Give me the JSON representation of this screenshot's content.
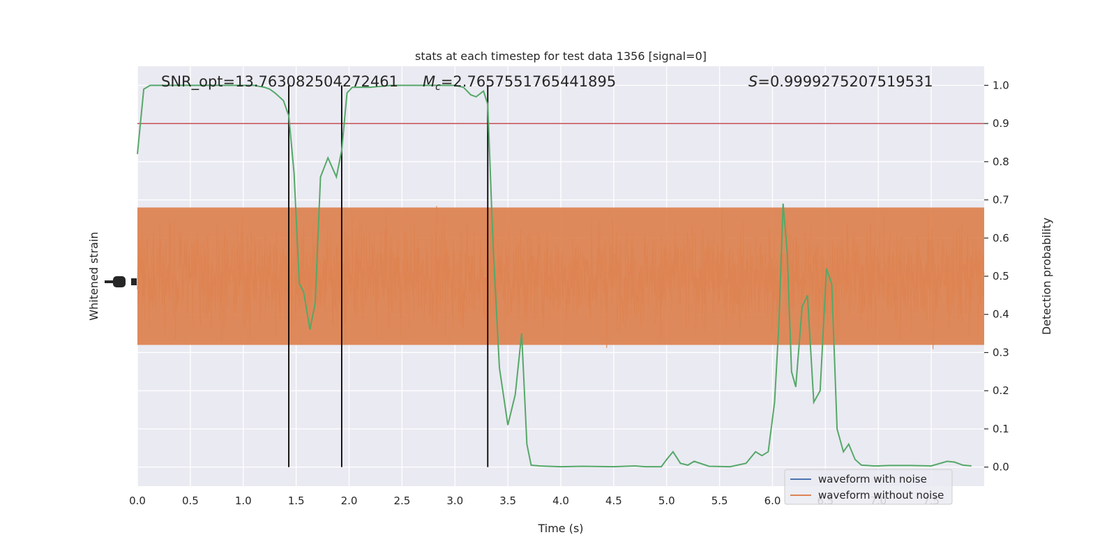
{
  "chart_data": {
    "type": "line",
    "title": "stats at each timestep for test data 1356 [signal=0]",
    "xlabel": "Time (s)",
    "ylabel_left": "Whitened strain",
    "ylabel_right": "Detection probability",
    "xlim": [
      0.0,
      8.0
    ],
    "ylim_right": [
      -0.05,
      1.05
    ],
    "x_ticks": [
      "0.0",
      "0.5",
      "1.0",
      "1.5",
      "2.0",
      "2.5",
      "3.0",
      "3.5",
      "4.0",
      "4.5",
      "5.0",
      "5.5",
      "6.0",
      "6.5",
      "7.0",
      "7.5"
    ],
    "y_ticks_right": [
      "0.0",
      "0.1",
      "0.2",
      "0.3",
      "0.4",
      "0.5",
      "0.6",
      "0.7",
      "0.8",
      "0.9",
      "1.0"
    ],
    "grid": true,
    "legend_position": "bottom-right",
    "annotations": {
      "snr": "SNR_opt=13.763082504272461",
      "mc_symbol": "M",
      "mc_subscript": "c",
      "mc_value": "=2.7657551765441895",
      "s_symbol": "S",
      "s_value": "=0.9999275207519531"
    },
    "threshold": 0.9,
    "threshold_color": "#c44e52",
    "vertical_markers": [
      1.43,
      1.93,
      3.31
    ],
    "series": [
      {
        "name": "waveform with noise",
        "color": "#4c72b0",
        "kind": "legend-only"
      },
      {
        "name": "waveform without noise",
        "color": "#dd8452",
        "kind": "noise",
        "noise_center": 0.5,
        "noise_band": [
          0.32,
          0.68
        ],
        "spike_max": 1.0,
        "spike_min": 0.0
      },
      {
        "name": "",
        "color": "#55a868",
        "kind": "probability",
        "x": [
          0.0,
          0.06,
          0.12,
          0.2,
          0.4,
          0.8,
          1.0,
          1.1,
          1.2,
          1.25,
          1.3,
          1.38,
          1.43,
          1.48,
          1.53,
          1.57,
          1.63,
          1.68,
          1.73,
          1.8,
          1.88,
          1.93,
          1.98,
          2.03,
          2.08,
          2.2,
          2.4,
          2.8,
          3.0,
          3.08,
          3.15,
          3.2,
          3.27,
          3.31,
          3.36,
          3.42,
          3.5,
          3.57,
          3.63,
          3.68,
          3.72,
          3.8,
          4.0,
          4.2,
          4.5,
          4.7,
          4.8,
          4.95,
          5.0,
          5.06,
          5.13,
          5.2,
          5.26,
          5.4,
          5.6,
          5.75,
          5.84,
          5.9,
          5.96,
          6.02,
          6.06,
          6.1,
          6.14,
          6.18,
          6.22,
          6.28,
          6.33,
          6.39,
          6.45,
          6.51,
          6.56,
          6.61,
          6.67,
          6.72,
          6.78,
          6.84,
          6.9,
          6.95,
          7.0,
          7.1,
          7.3,
          7.5,
          7.65,
          7.72,
          7.8,
          7.88
        ],
        "y": [
          0.82,
          0.99,
          1.0,
          1.0,
          1.0,
          1.0,
          1.0,
          1.0,
          0.995,
          0.99,
          0.98,
          0.96,
          0.92,
          0.77,
          0.48,
          0.46,
          0.36,
          0.43,
          0.76,
          0.81,
          0.76,
          0.83,
          0.98,
          0.995,
          0.995,
          0.995,
          1.0,
          1.0,
          1.0,
          0.995,
          0.975,
          0.97,
          0.985,
          0.95,
          0.58,
          0.26,
          0.11,
          0.19,
          0.35,
          0.06,
          0.005,
          0.003,
          0.001,
          0.002,
          0.001,
          0.003,
          0.001,
          0.001,
          0.02,
          0.04,
          0.01,
          0.005,
          0.015,
          0.002,
          0.001,
          0.01,
          0.04,
          0.03,
          0.04,
          0.17,
          0.37,
          0.69,
          0.56,
          0.25,
          0.21,
          0.42,
          0.45,
          0.17,
          0.2,
          0.52,
          0.48,
          0.1,
          0.04,
          0.06,
          0.02,
          0.005,
          0.004,
          0.003,
          0.003,
          0.004,
          0.004,
          0.003,
          0.015,
          0.013,
          0.005,
          0.003
        ]
      }
    ]
  }
}
